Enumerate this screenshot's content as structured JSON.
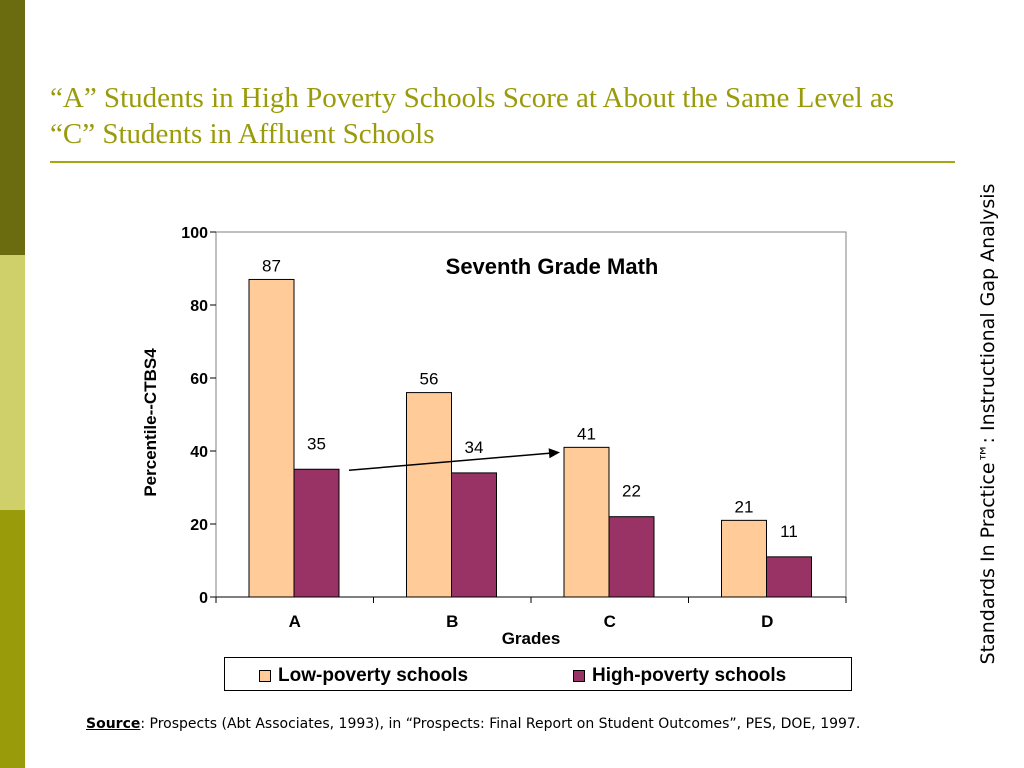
{
  "slide": {
    "title_line1": "“A” Students in High Poverty Schools Score at About the Same Level as",
    "title_line2": "“C” Students in Affluent Schools",
    "side_text": "Standards In Practice™: Instructional Gap Analysis",
    "source_label": "Source",
    "source_text": ":  Prospects (Abt Associates, 1993), in “Prospects:  Final Report on Student Outcomes”, PES, DOE, 1997.",
    "colors": {
      "title": "#9a9b0b",
      "stripe_dark": "#6b6b0f",
      "stripe_light": "#cfd06a",
      "stripe_mid": "#9a9b0b"
    }
  },
  "chart_data": {
    "type": "bar",
    "title": "Seventh Grade Math",
    "xlabel": "Grades",
    "ylabel": "Percentile--CTBS4",
    "categories": [
      "A",
      "B",
      "C",
      "D"
    ],
    "ylim": [
      0,
      100
    ],
    "yticks": [
      0,
      20,
      40,
      60,
      80,
      100
    ],
    "series": [
      {
        "name": "Low-poverty schools",
        "values": [
          87,
          56,
          41,
          21
        ],
        "color": "#ffcc99"
      },
      {
        "name": "High-poverty schools",
        "values": [
          35,
          34,
          22,
          11
        ],
        "color": "#993366"
      }
    ],
    "legend_position": "bottom",
    "grid": false,
    "annotation": {
      "type": "arrow",
      "from": {
        "category": "A",
        "series": "High-poverty schools"
      },
      "to": {
        "category": "C",
        "series": "Low-poverty schools"
      }
    }
  }
}
